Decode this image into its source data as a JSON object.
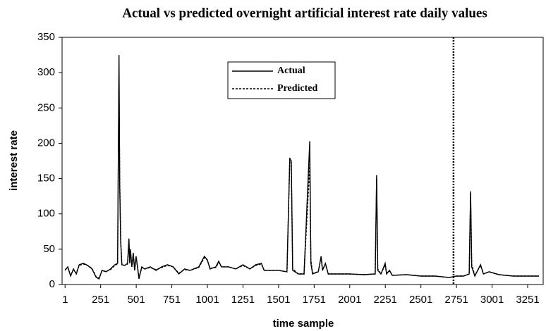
{
  "chart_data": {
    "type": "line",
    "title": "Actual vs predicted overnight artificial interest rate daily values",
    "x_label": "time sample",
    "y_label": "interest rate",
    "x": [
      1,
      20,
      40,
      60,
      80,
      100,
      130,
      160,
      190,
      220,
      240,
      260,
      290,
      320,
      350,
      370,
      380,
      385,
      392,
      400,
      420,
      440,
      450,
      455,
      460,
      470,
      480,
      490,
      500,
      510,
      520,
      540,
      560,
      600,
      640,
      680,
      720,
      760,
      800,
      840,
      880,
      940,
      980,
      1000,
      1020,
      1060,
      1080,
      1100,
      1150,
      1200,
      1250,
      1300,
      1340,
      1380,
      1400,
      1450,
      1500,
      1560,
      1580,
      1590,
      1600,
      1640,
      1680,
      1720,
      1728,
      1740,
      1780,
      1800,
      1810,
      1830,
      1850,
      1900,
      2000,
      2100,
      2180,
      2190,
      2198,
      2220,
      2250,
      2260,
      2280,
      2300,
      2400,
      2500,
      2600,
      2700,
      2750,
      2800,
      2840,
      2850,
      2858,
      2880,
      2920,
      2940,
      2980,
      3050,
      3150,
      3250,
      3330
    ],
    "series": [
      {
        "name": "Actual",
        "color": "#000000",
        "dash": false,
        "values": [
          20,
          25,
          12,
          22,
          15,
          28,
          30,
          27,
          22,
          10,
          8,
          20,
          18,
          22,
          28,
          30,
          325,
          140,
          60,
          28,
          27,
          30,
          65,
          30,
          50,
          25,
          45,
          20,
          40,
          25,
          8,
          25,
          22,
          25,
          20,
          25,
          28,
          25,
          15,
          22,
          20,
          25,
          40,
          35,
          22,
          25,
          33,
          25,
          25,
          22,
          28,
          22,
          28,
          30,
          20,
          20,
          20,
          18,
          178,
          175,
          20,
          15,
          15,
          203,
          30,
          15,
          18,
          40,
          20,
          30,
          15,
          15,
          15,
          14,
          15,
          155,
          20,
          15,
          30,
          15,
          20,
          13,
          14,
          12,
          12,
          10,
          12,
          12,
          15,
          132,
          25,
          12,
          28,
          15,
          18,
          14,
          12,
          12,
          12
        ]
      },
      {
        "name": "Predicted",
        "color": "#000000",
        "dash": true,
        "values": [
          21,
          24,
          13,
          21,
          16,
          27,
          29,
          27,
          23,
          11,
          9,
          19,
          19,
          21,
          27,
          29,
          300,
          150,
          65,
          29,
          27,
          29,
          60,
          32,
          48,
          26,
          42,
          21,
          38,
          26,
          10,
          24,
          22,
          24,
          21,
          24,
          27,
          25,
          16,
          21,
          20,
          24,
          38,
          35,
          23,
          24,
          31,
          25,
          25,
          22,
          27,
          22,
          27,
          29,
          20,
          20,
          20,
          18,
          180,
          172,
          22,
          15,
          15,
          170,
          35,
          16,
          18,
          38,
          21,
          29,
          15,
          15,
          15,
          14,
          15,
          150,
          22,
          15,
          28,
          16,
          19,
          13,
          14,
          12,
          12,
          10,
          12,
          12,
          15,
          130,
          28,
          13,
          27,
          15,
          18,
          14,
          12,
          12,
          12
        ]
      }
    ],
    "xlim": [
      -20,
      3360
    ],
    "ylim": [
      0,
      350
    ],
    "xticks": [
      1,
      251,
      501,
      751,
      1001,
      1251,
      1501,
      1751,
      2001,
      2251,
      2501,
      2751,
      3001,
      3251
    ],
    "yticks": [
      0,
      50,
      100,
      150,
      200,
      250,
      300,
      350
    ],
    "vline_x": 2730
  }
}
